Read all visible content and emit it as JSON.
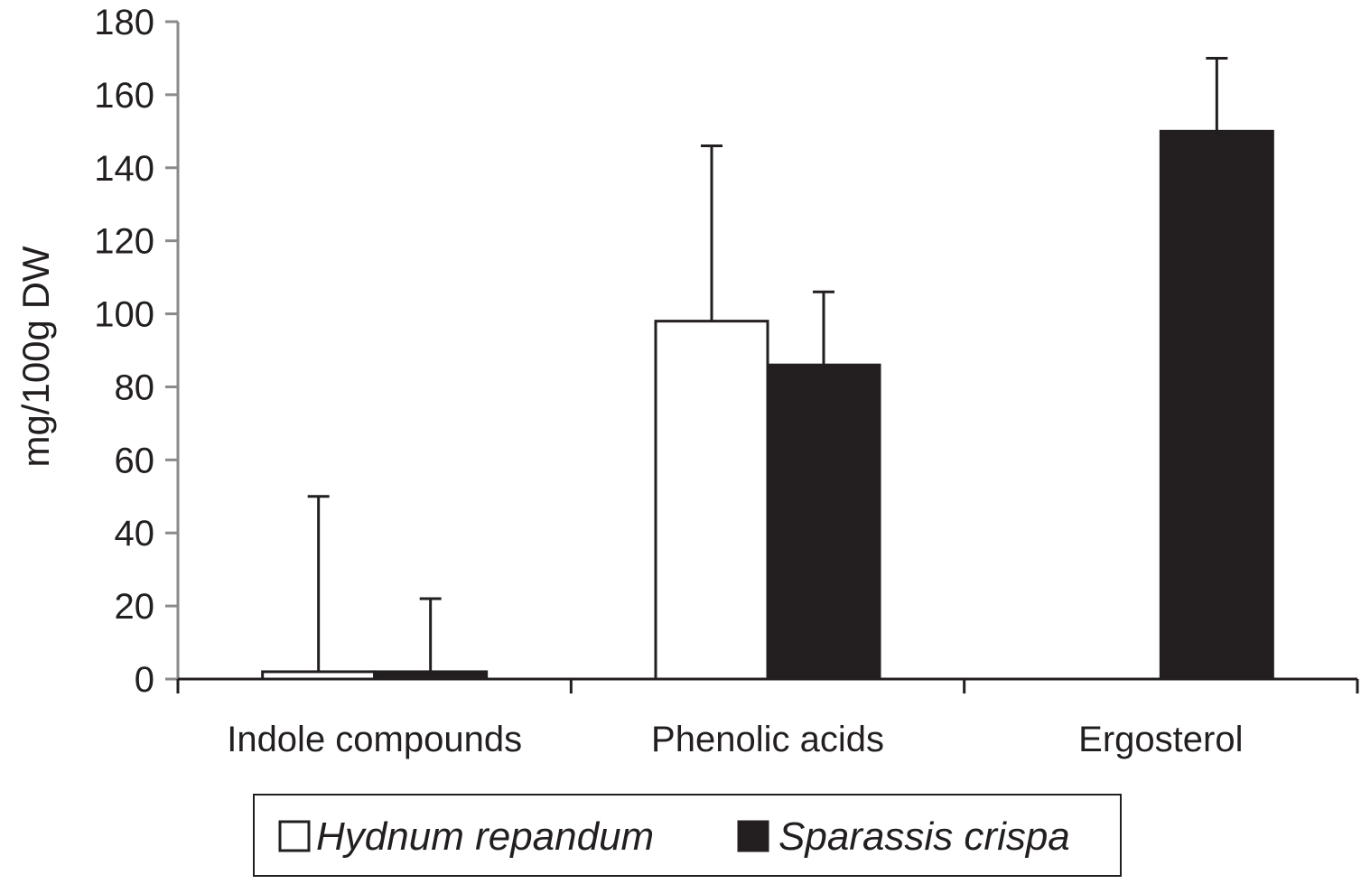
{
  "chart_data": {
    "type": "bar",
    "title": "",
    "xlabel": "",
    "ylabel": "mg/100g  DW",
    "ylim": [
      0,
      180
    ],
    "yticks": [
      0,
      20,
      40,
      60,
      80,
      100,
      120,
      140,
      160,
      180
    ],
    "grid": false,
    "legend_position": "bottom",
    "categories": [
      "Indole compounds",
      "Phenolic acids",
      "Ergosterol"
    ],
    "series": [
      {
        "name": "Hydnum repandum",
        "color": "#ffffff",
        "values": [
          2,
          98,
          0
        ],
        "error_upper": [
          48,
          48,
          0
        ]
      },
      {
        "name": "Sparassis crispa",
        "color": "#231f20",
        "values": [
          2,
          86,
          150
        ],
        "error_upper": [
          20,
          20,
          20
        ]
      }
    ]
  }
}
